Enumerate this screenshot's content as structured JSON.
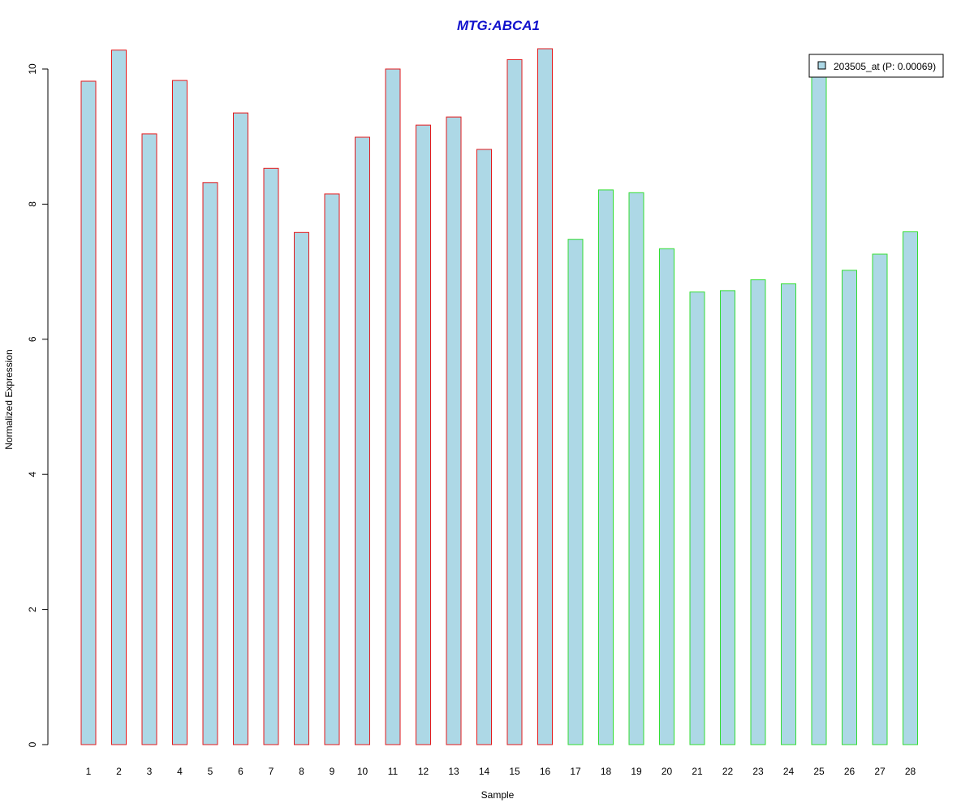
{
  "chart_data": {
    "type": "bar",
    "title": "MTG:ABCA1",
    "xlabel": "Sample",
    "ylabel": "Normalized Expression",
    "categories": [
      "1",
      "2",
      "3",
      "4",
      "5",
      "6",
      "7",
      "8",
      "9",
      "10",
      "11",
      "12",
      "13",
      "14",
      "15",
      "16",
      "17",
      "18",
      "19",
      "20",
      "21",
      "22",
      "23",
      "24",
      "25",
      "26",
      "27",
      "28"
    ],
    "series": [
      {
        "name": "203505_at (P: 0.00069)",
        "values": [
          9.82,
          10.28,
          9.04,
          9.83,
          8.32,
          9.35,
          8.53,
          7.58,
          8.15,
          8.99,
          10.0,
          9.17,
          9.29,
          8.81,
          10.14,
          10.3,
          7.48,
          8.21,
          8.17,
          7.34,
          6.7,
          6.72,
          6.88,
          6.82,
          10.0,
          7.02,
          7.26,
          7.59
        ]
      }
    ],
    "group_outline_colors": [
      "#e31a1c",
      "#e31a1c",
      "#e31a1c",
      "#e31a1c",
      "#e31a1c",
      "#e31a1c",
      "#e31a1c",
      "#e31a1c",
      "#e31a1c",
      "#e31a1c",
      "#e31a1c",
      "#e31a1c",
      "#e31a1c",
      "#e31a1c",
      "#e31a1c",
      "#e31a1c",
      "#33dd33",
      "#33dd33",
      "#33dd33",
      "#33dd33",
      "#33dd33",
      "#33dd33",
      "#33dd33",
      "#33dd33",
      "#33dd33",
      "#33dd33",
      "#33dd33",
      "#33dd33"
    ],
    "yticks": [
      0,
      2,
      4,
      6,
      8,
      10
    ],
    "ylim": [
      0,
      10.3
    ],
    "grid": false,
    "legend_position": "top-right",
    "colors": {
      "bar_fill": "#add8e6",
      "title": "#1111cc",
      "axis": "#000000"
    }
  }
}
